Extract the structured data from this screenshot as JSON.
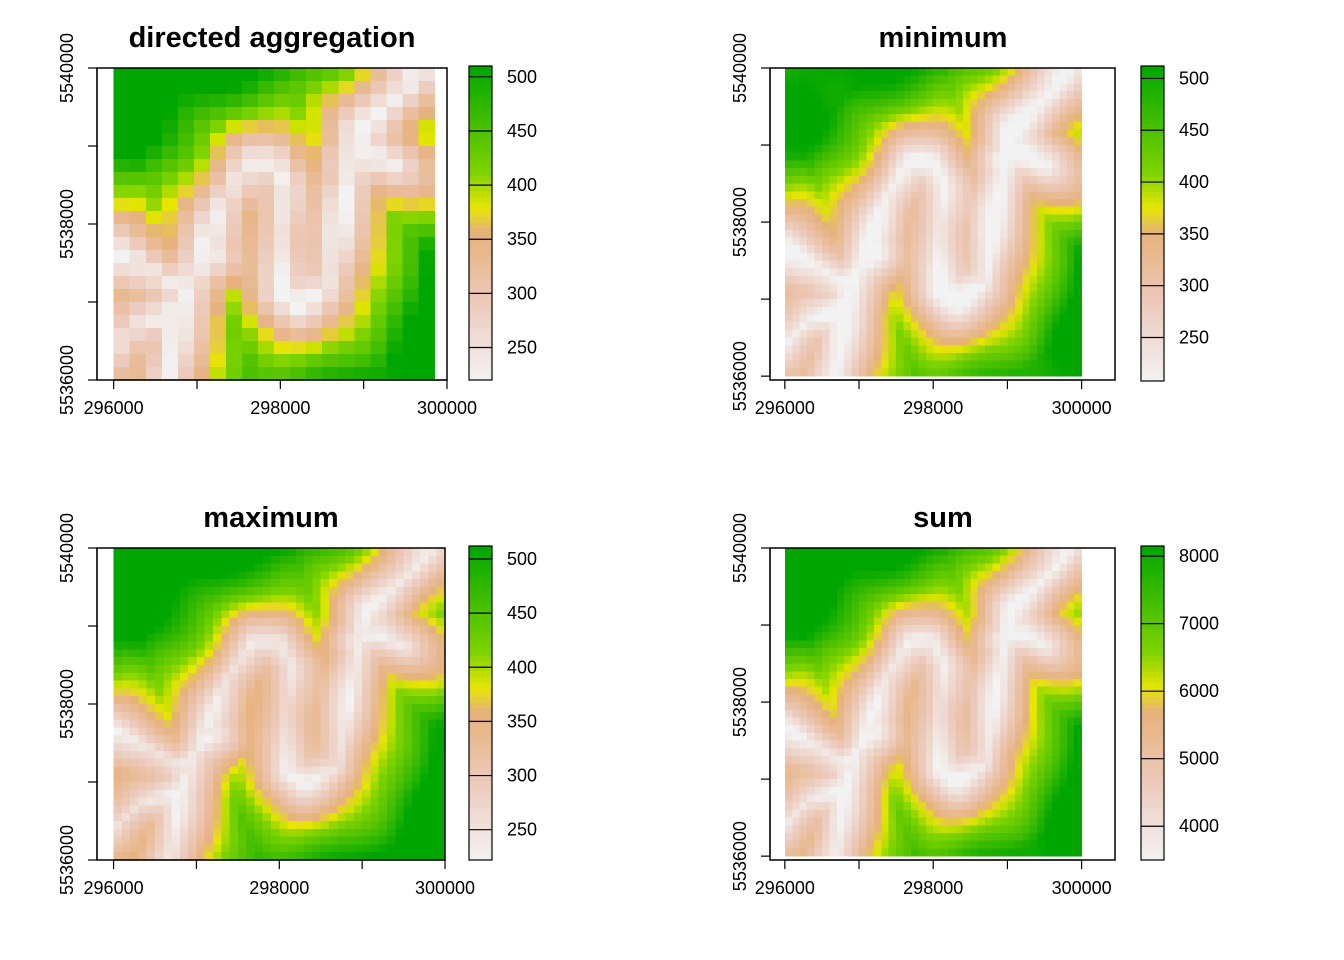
{
  "figure": {
    "title": "",
    "panel_titles": [
      "directed aggregation",
      "minimum",
      "maximum",
      "sum"
    ]
  },
  "chart_data": [
    {
      "type": "heatmap",
      "title": "directed aggregation",
      "xlabel": "",
      "ylabel": "",
      "xlim": [
        295800,
        300000
      ],
      "ylim": [
        5536000,
        5540000
      ],
      "xticks": [
        "296000",
        "298000",
        "300000"
      ],
      "yticks": [
        "5536000",
        "5538000",
        "5540000"
      ],
      "data_extent": {
        "x": [
          296000,
          299850
        ],
        "y": [
          5536000,
          5540000
        ]
      },
      "colorbar": {
        "range": [
          220,
          510
        ],
        "ticks": [
          "250",
          "300",
          "350",
          "400",
          "450",
          "500"
        ]
      },
      "grid_resolution": [
        20,
        24
      ],
      "palette": "terrain",
      "colors": {
        "low": "#F2F2F2",
        "mid_low": "#E6B27C",
        "mid": "#E6E600",
        "high": "#00A600"
      }
    },
    {
      "type": "heatmap",
      "title": "minimum",
      "xlabel": "",
      "ylabel": "",
      "xlim": [
        295800,
        300450
      ],
      "ylim": [
        5535950,
        5540000
      ],
      "xticks": [
        "296000",
        "298000",
        "300000"
      ],
      "yticks": [
        "5536000",
        "5538000",
        "5540000"
      ],
      "data_extent": {
        "x": [
          296000,
          300000
        ],
        "y": [
          5536000,
          5540000
        ]
      },
      "colorbar": {
        "range": [
          208,
          512
        ],
        "ticks": [
          "250",
          "300",
          "350",
          "400",
          "450",
          "500"
        ]
      },
      "grid_resolution": [
        40,
        40
      ],
      "palette": "terrain",
      "colors": {
        "low": "#F2F2F2",
        "mid_low": "#E6B27C",
        "mid": "#E6E600",
        "high": "#00A600"
      }
    },
    {
      "type": "heatmap",
      "title": "maximum",
      "xlabel": "",
      "ylabel": "",
      "xlim": [
        295800,
        300000
      ],
      "ylim": [
        5536000,
        5540000
      ],
      "xticks": [
        "296000",
        "298000",
        "300000"
      ],
      "yticks": [
        "5536000",
        "5538000",
        "5540000"
      ],
      "data_extent": {
        "x": [
          296000,
          300000
        ],
        "y": [
          5536000,
          5540000
        ]
      },
      "colorbar": {
        "range": [
          222,
          512
        ],
        "ticks": [
          "250",
          "300",
          "350",
          "400",
          "450",
          "500"
        ]
      },
      "grid_resolution": [
        40,
        40
      ],
      "palette": "terrain",
      "colors": {
        "low": "#F2F2F2",
        "mid_low": "#E6B27C",
        "mid": "#E6E600",
        "high": "#00A600"
      }
    },
    {
      "type": "heatmap",
      "title": "sum",
      "xlabel": "",
      "ylabel": "",
      "xlim": [
        295800,
        300450
      ],
      "ylim": [
        5535950,
        5540000
      ],
      "xticks": [
        "296000",
        "298000",
        "300000"
      ],
      "yticks": [
        "5536000",
        "5538000",
        "5540000"
      ],
      "data_extent": {
        "x": [
          296000,
          300000
        ],
        "y": [
          5536000,
          5540000
        ]
      },
      "colorbar": {
        "range": [
          3500,
          8150
        ],
        "ticks": [
          "4000",
          "5000",
          "6000",
          "7000",
          "8000"
        ]
      },
      "grid_resolution": [
        40,
        40
      ],
      "palette": "terrain",
      "colors": {
        "low": "#F2F2F2",
        "mid_low": "#E6B27C",
        "mid": "#E6E600",
        "high": "#00A600"
      }
    }
  ]
}
